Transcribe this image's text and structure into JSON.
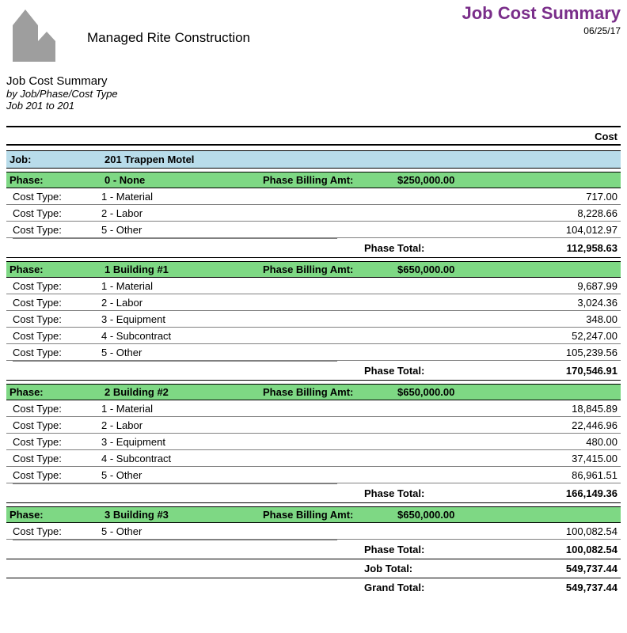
{
  "report": {
    "title": "Job Cost Summary",
    "date": "06/25/17",
    "company": "Managed Rite Construction",
    "sub_title": "Job Cost Summary",
    "by_line": "by Job/Phase/Cost Type",
    "range": "Job 201 to 201",
    "cost_header": "Cost",
    "colors": {
      "title": "#7a2e8a",
      "job_bg": "#b8dcea",
      "phase_bg": "#7ed884",
      "row_border": "#808080"
    }
  },
  "labels": {
    "job": "Job:",
    "phase": "Phase:",
    "cost_type": "Cost Type:",
    "billing": "Phase Billing Amt:",
    "phase_total": "Phase Total:",
    "job_total": "Job Total:",
    "grand_total": "Grand Total:"
  },
  "job": {
    "name": "201  Trappen Motel",
    "phases": [
      {
        "name": "0 - None",
        "billing": "$250,000.00",
        "rows": [
          {
            "name": "1 - Material",
            "cost": "717.00"
          },
          {
            "name": "2 - Labor",
            "cost": "8,228.66"
          },
          {
            "name": "5 - Other",
            "cost": "104,012.97"
          }
        ],
        "total": "112,958.63"
      },
      {
        "name": "1   Building #1",
        "billing": "$650,000.00",
        "rows": [
          {
            "name": "1 - Material",
            "cost": "9,687.99"
          },
          {
            "name": "2 - Labor",
            "cost": "3,024.36"
          },
          {
            "name": "3 - Equipment",
            "cost": "348.00"
          },
          {
            "name": "4 - Subcontract",
            "cost": "52,247.00"
          },
          {
            "name": "5 - Other",
            "cost": "105,239.56"
          }
        ],
        "total": "170,546.91"
      },
      {
        "name": "2   Building #2",
        "billing": "$650,000.00",
        "rows": [
          {
            "name": "1 - Material",
            "cost": "18,845.89"
          },
          {
            "name": "2 - Labor",
            "cost": "22,446.96"
          },
          {
            "name": "3 - Equipment",
            "cost": "480.00"
          },
          {
            "name": "4 - Subcontract",
            "cost": "37,415.00"
          },
          {
            "name": "5 - Other",
            "cost": "86,961.51"
          }
        ],
        "total": "166,149.36"
      },
      {
        "name": "3   Building #3",
        "billing": "$650,000.00",
        "rows": [
          {
            "name": "5 - Other",
            "cost": "100,082.54"
          }
        ],
        "total": "100,082.54"
      }
    ],
    "job_total": "549,737.44",
    "grand_total": "549,737.44"
  }
}
